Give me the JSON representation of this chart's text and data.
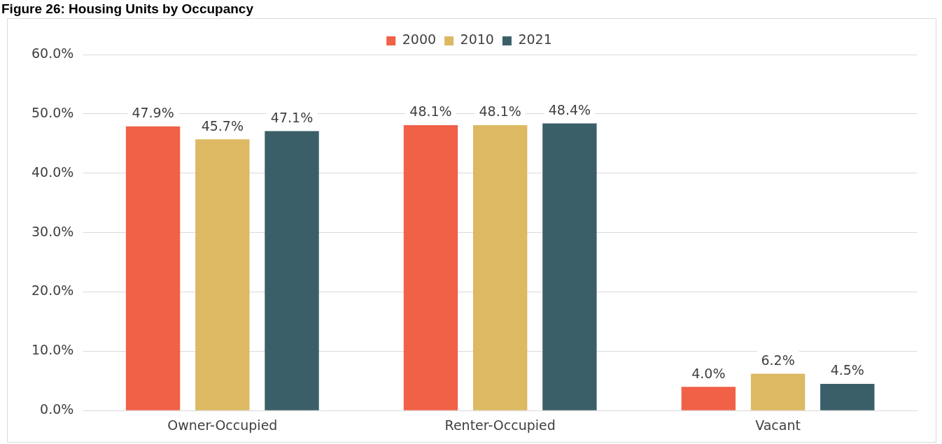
{
  "chart_data": {
    "type": "bar",
    "title": "Figure 26: Housing Units by Occupancy",
    "categories": [
      "Owner-Occupied",
      "Renter-Occupied",
      "Vacant"
    ],
    "series": [
      {
        "name": "2000",
        "color": "#f06147",
        "values": [
          47.9,
          48.1,
          4.0
        ],
        "value_labels": [
          "47.9%",
          "48.1%",
          "4.0%"
        ]
      },
      {
        "name": "2010",
        "color": "#dcb962",
        "values": [
          45.7,
          48.1,
          6.2
        ],
        "value_labels": [
          "45.7%",
          "48.1%",
          "6.2%"
        ]
      },
      {
        "name": "2021",
        "color": "#3b5f69",
        "values": [
          47.1,
          48.4,
          4.5
        ],
        "value_labels": [
          "47.1%",
          "48.4%",
          "4.5%"
        ]
      }
    ],
    "ylim": [
      0,
      60
    ],
    "yticks": [
      {
        "value": 0,
        "label": "0.0%"
      },
      {
        "value": 10,
        "label": "10.0%"
      },
      {
        "value": 20,
        "label": "20.0%"
      },
      {
        "value": 30,
        "label": "30.0%"
      },
      {
        "value": 40,
        "label": "40.0%"
      },
      {
        "value": 50,
        "label": "50.0%"
      },
      {
        "value": 60,
        "label": "60.0%"
      }
    ],
    "grid": "y",
    "legend": "top"
  }
}
